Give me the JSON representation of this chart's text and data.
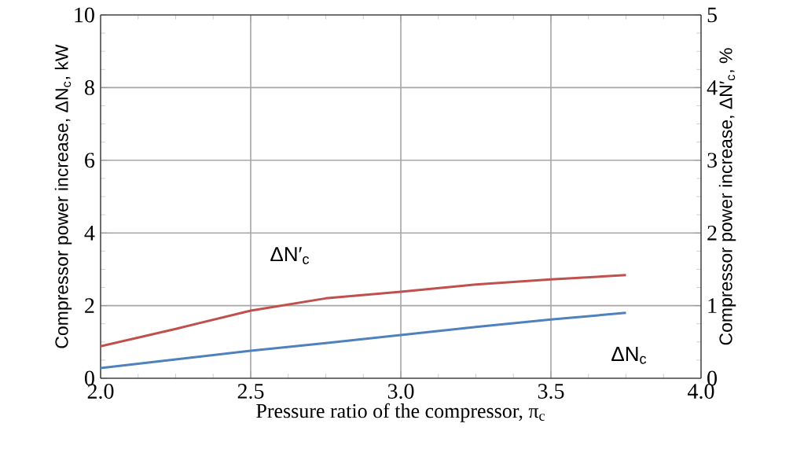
{
  "chart_data": {
    "type": "line",
    "xlabel": "Pressure ratio of the compressor, π$_{c}$",
    "ylabel": "Compressor power increase, ΔN$_{c}$, kW",
    "y2label": "Compressor power increase, ΔN′$_{c}$, %",
    "x": [
      2.0,
      2.25,
      2.5,
      2.75,
      3.0,
      3.25,
      3.5,
      3.75
    ],
    "series": [
      {
        "name": "ΔN′$_{c}$",
        "color": "#c0504d",
        "axis": "y2",
        "values": [
          0.44,
          0.68,
          0.93,
          1.1,
          1.19,
          1.29,
          1.36,
          1.42
        ]
      },
      {
        "name": "ΔN$_{c}$",
        "color": "#4f81bd",
        "values": [
          0.28,
          0.52,
          0.76,
          0.97,
          1.19,
          1.41,
          1.62,
          1.8
        ]
      }
    ],
    "xlim": [
      2.0,
      4.0
    ],
    "xticks": [
      {
        "value": 2.0,
        "label": "2.0"
      },
      {
        "value": 2.5,
        "label": "2.5"
      },
      {
        "value": 3.0,
        "label": "3.0"
      },
      {
        "value": 3.5,
        "label": "3.5"
      },
      {
        "value": 4.0,
        "label": "4.0"
      }
    ],
    "ylim": [
      0,
      10
    ],
    "yticks": [
      0,
      2,
      4,
      6,
      8,
      10
    ],
    "y2lim": [
      0,
      5
    ],
    "y2ticks": [
      0,
      1,
      2,
      3,
      4,
      5
    ],
    "grid": true,
    "legend": false,
    "marker": "none",
    "line_style": "solid"
  }
}
